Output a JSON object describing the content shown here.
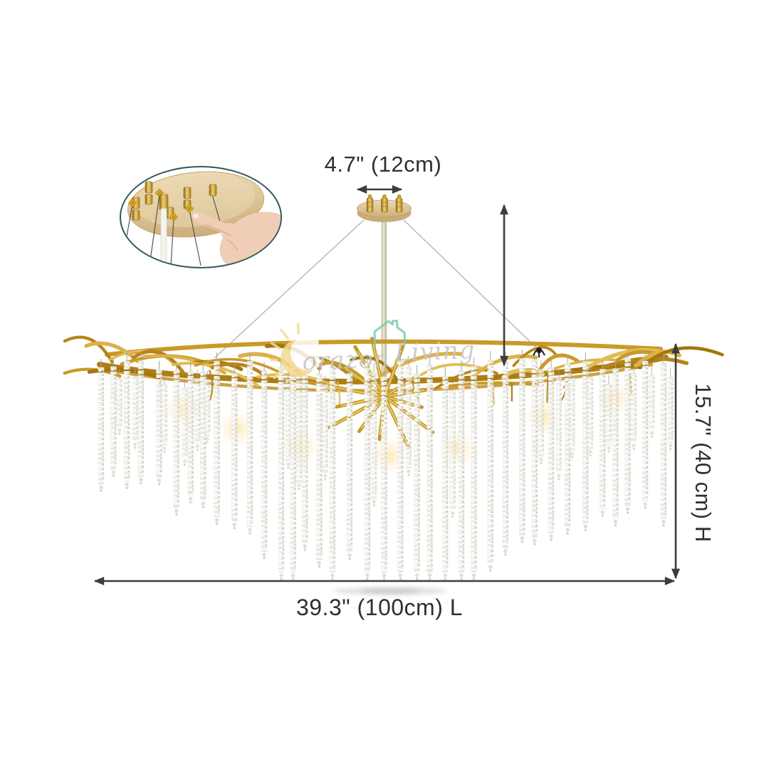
{
  "annotations": {
    "canopy_width_label": "4.7\" (12cm)",
    "height_label": "15.7\" (40 cm) H",
    "length_label": "39.3\" (100cm) L"
  },
  "watermark": {
    "full_text": "Corazon Living",
    "brand_first": "orazon",
    "brand_second": "Living"
  },
  "icons": {
    "sun": "sun-icon",
    "house": "house-icon",
    "pointing_hand": "pointing-hand-icon"
  },
  "colors": {
    "background": "#ffffff",
    "arrow": "#3d3d3d",
    "label_text": "#2f2f2f",
    "branch_gold": "#c49a25",
    "branch_gold_light": "#e9d27f",
    "canopy_tan": "#d9c096",
    "crystal": "#e8e8e1",
    "inset_border": "#35585a",
    "watermark_gray": "#c6c6c6",
    "watermark_teal": "#7fc8b3",
    "watermark_yellow": "#f5da92",
    "hand_skin": "#efcdb6"
  }
}
